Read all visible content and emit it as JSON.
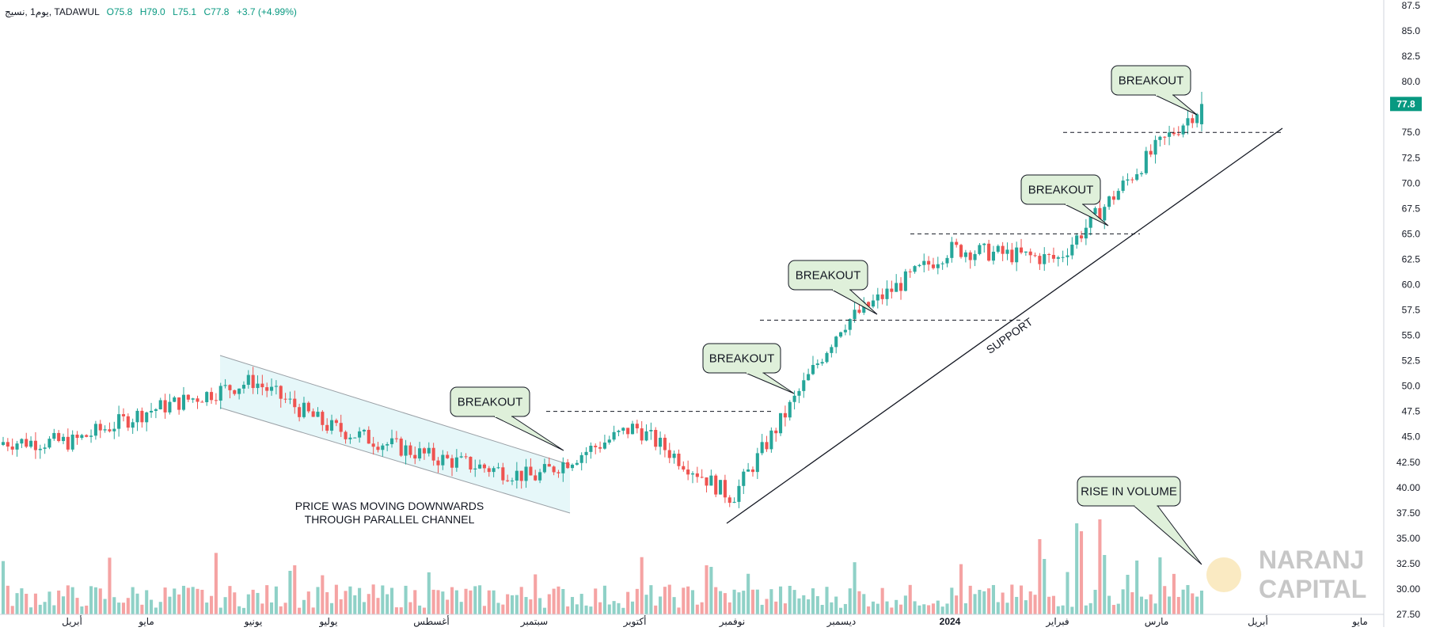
{
  "header": {
    "symbol_line": "يوم1 ,نسيج, TADAWUL",
    "open": "O75.8",
    "high": "H79.0",
    "low": "L75.1",
    "close": "C77.8",
    "change": "+3.7 (+4.99%)"
  },
  "colors": {
    "up": "#26a69a",
    "down": "#ef5350",
    "vol_up": "#8fd1c7",
    "vol_down": "#f5a3a3",
    "channel_fill": "#e6f7f9",
    "callout_fill": "#dff0da",
    "price_tag": "#089981"
  },
  "price_tag": "77.8",
  "logo": {
    "line1": "NARANJ",
    "line2": "CAPITAL"
  },
  "chart_data": {
    "type": "candlestick",
    "title": "",
    "ylim": [
      27.5,
      87.5
    ],
    "y_ticks": [
      "87.5",
      "85.0",
      "82.5",
      "80.0",
      "77.5",
      "75.0",
      "72.5",
      "70.0",
      "67.5",
      "65.0",
      "62.5",
      "60.0",
      "57.5",
      "55.0",
      "52.5",
      "50.0",
      "47.5",
      "45.0",
      "42.50",
      "40.00",
      "37.50",
      "35.00",
      "32.50",
      "30.00",
      "27.50"
    ],
    "x_months": [
      "أبريل",
      "مايو",
      "يونيو",
      "يوليو",
      "أغسطس",
      "سبتمبر",
      "أكتوبر",
      "نوفمبر",
      "ديسمبر",
      "2024",
      "فبراير",
      "مارس",
      "أبريل",
      "مايو"
    ],
    "key_prices": [
      {
        "x": "أبريل",
        "y": 44.5
      },
      {
        "x": "مايو",
        "y": 47.5
      },
      {
        "x": "يونيو",
        "y": 50.5
      },
      {
        "x": "يوليو",
        "y": 46.0
      },
      {
        "x": "أغسطس",
        "y": 43.0
      },
      {
        "x": "سبتمبر",
        "y": 41.0
      },
      {
        "x": "أكتوبر",
        "y": 46.0
      },
      {
        "x": "نوفمبر",
        "y": 39.0
      },
      {
        "x": "ديسمبر",
        "y": 56.0
      },
      {
        "x": "2024",
        "y": 63.5
      },
      {
        "x": "فبراير",
        "y": 62.5
      },
      {
        "x": "مارس",
        "y": 73.5
      },
      {
        "x": "latest",
        "y": 77.8
      }
    ],
    "annotations": {
      "breakouts": [
        "BREAKOUT",
        "BREAKOUT",
        "BREAKOUT",
        "BREAKOUT",
        "BREAKOUT"
      ],
      "volume": "RISE IN VOLUME",
      "support": "SUPPORT",
      "channel_line1": "PRICE WAS MOVING DOWNWARDS",
      "channel_line2": "THROUGH PARALLEL CHANNEL",
      "resistance_levels": [
        47.5,
        56.5,
        65.0,
        75.0
      ]
    }
  }
}
